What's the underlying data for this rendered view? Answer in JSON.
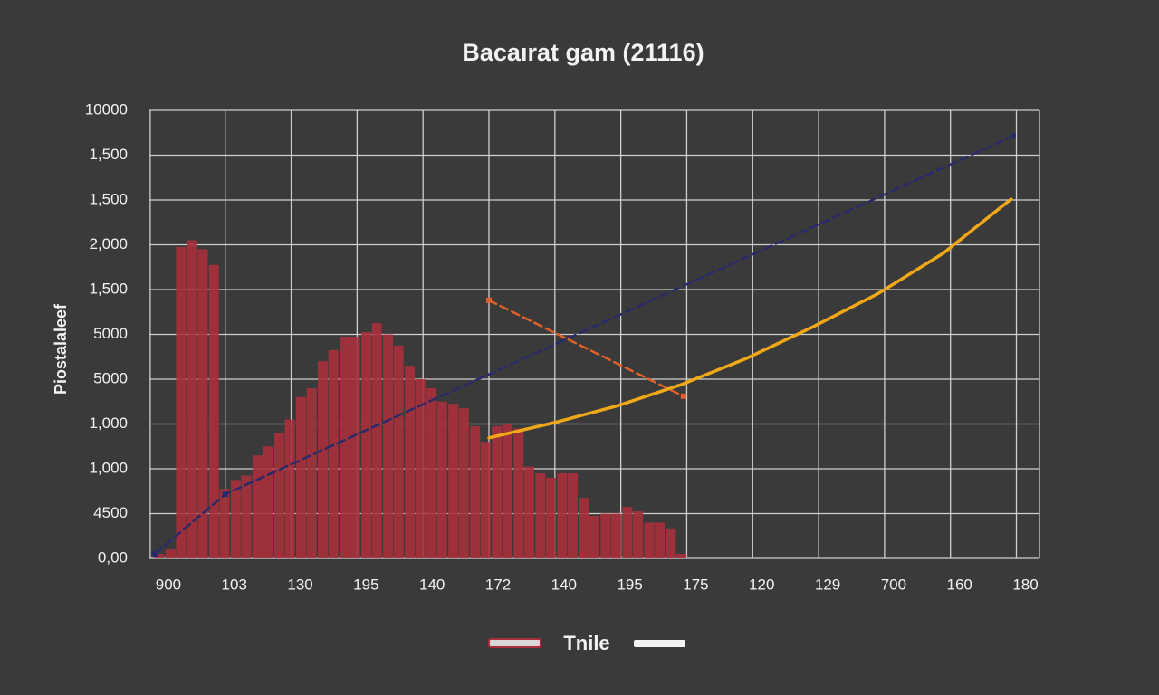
{
  "chart_data": {
    "type": "combo",
    "title": "Bacaırat gam (21116)",
    "ylabel": "Piostalaleef",
    "xlim": [
      -0.15,
      13.35
    ],
    "ylim": [
      0,
      10
    ],
    "xticks": [
      {
        "value": 0,
        "label": "900"
      },
      {
        "value": 1,
        "label": "103"
      },
      {
        "value": 2,
        "label": "130"
      },
      {
        "value": 3,
        "label": "195"
      },
      {
        "value": 4,
        "label": "140"
      },
      {
        "value": 5,
        "label": "172"
      },
      {
        "value": 6,
        "label": "140"
      },
      {
        "value": 7,
        "label": "195"
      },
      {
        "value": 8,
        "label": "175"
      },
      {
        "value": 9,
        "label": "120"
      },
      {
        "value": 10,
        "label": "129"
      },
      {
        "value": 11,
        "label": "700"
      },
      {
        "value": 12,
        "label": "160"
      },
      {
        "value": 13,
        "label": "180"
      }
    ],
    "yticks": [
      {
        "value": 0,
        "label": "0,00"
      },
      {
        "value": 1,
        "label": "4500"
      },
      {
        "value": 2,
        "label": "1,000"
      },
      {
        "value": 3,
        "label": "1,000"
      },
      {
        "value": 4,
        "label": "5000"
      },
      {
        "value": 5,
        "label": "5000"
      },
      {
        "value": 6,
        "label": "1,500"
      },
      {
        "value": 7,
        "label": "2,000"
      },
      {
        "value": 8,
        "label": "1,500"
      },
      {
        "value": 9,
        "label": "1,500"
      },
      {
        "value": 10,
        "label": "10000"
      }
    ],
    "grid": true,
    "series": [
      {
        "type": "bar",
        "color": "#a8303c",
        "x": [
          0,
          0.17,
          0.33,
          0.5,
          0.66,
          0.83,
          0.99,
          1.16,
          1.32,
          1.49,
          1.65,
          1.82,
          1.98,
          2.15,
          2.31,
          2.48,
          2.64,
          2.81,
          2.97,
          3.14,
          3.3,
          3.47,
          3.63,
          3.8,
          3.96,
          4.13,
          4.29,
          4.46,
          4.62,
          4.79,
          4.95,
          5.12,
          5.28,
          5.45,
          5.61,
          5.78,
          5.94,
          6.11,
          6.27,
          6.44,
          6.6,
          6.77,
          6.93,
          7.1,
          7.26,
          7.43,
          7.59,
          7.76,
          7.92
        ],
        "values": [
          0.1,
          0.2,
          6.95,
          7.1,
          6.9,
          6.55,
          1.55,
          1.75,
          1.85,
          2.3,
          2.5,
          2.8,
          3.1,
          3.6,
          3.8,
          4.4,
          4.65,
          4.95,
          4.95,
          5.05,
          5.25,
          5.0,
          4.75,
          4.3,
          4.0,
          3.8,
          3.5,
          3.45,
          3.35,
          2.95,
          2.6,
          2.95,
          3.0,
          2.9,
          2.05,
          1.9,
          1.8,
          1.9,
          1.9,
          1.35,
          0.95,
          1.0,
          1.0,
          1.15,
          1.05,
          0.8,
          0.8,
          0.65,
          0.1
        ]
      },
      {
        "type": "line",
        "color": "#2a2a6a",
        "dash": true,
        "x": [
          -0.07,
          1.0,
          12.95
        ],
        "values": [
          0.1,
          1.43,
          9.43
        ]
      },
      {
        "type": "line",
        "color": "#e0602a",
        "dash": true,
        "x": [
          5.0,
          7.95
        ],
        "values": [
          5.76,
          3.62
        ]
      },
      {
        "type": "line",
        "color": "#f0a818",
        "dash": false,
        "x": [
          5.0,
          5.99,
          6.96,
          7.92,
          8.9,
          9.89,
          10.89,
          11.89,
          12.92
        ],
        "values": [
          2.69,
          3.03,
          3.41,
          3.88,
          4.46,
          5.15,
          5.9,
          6.81,
          8.02
        ]
      }
    ],
    "legend": {
      "label": "Tnile",
      "colors": [
        "#d8d8d8",
        "#f4f4f4"
      ],
      "border": "#a8303c"
    }
  }
}
